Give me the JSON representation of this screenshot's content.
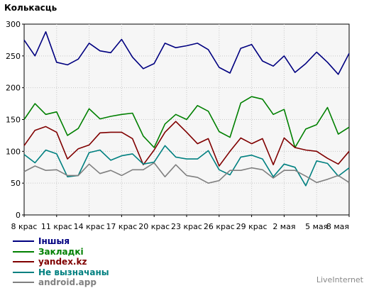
{
  "chart_data": {
    "type": "line",
    "title": "Колькасць",
    "xlabel": "",
    "ylabel": "",
    "ylim": [
      0,
      300
    ],
    "yticks": [
      0,
      50,
      100,
      150,
      200,
      250,
      300
    ],
    "grid": true,
    "legend_position": "bottom-left",
    "x_tick_labels": [
      "8 крас",
      "11 крас",
      "14 крас",
      "17 крас",
      "20 крас",
      "23 крас",
      "26 крас",
      "29 крас",
      "2 мая",
      "5 мая",
      "8 мая"
    ],
    "series": [
      {
        "name": "Іншыя",
        "color": "#000080",
        "values": [
          275,
          250,
          288,
          240,
          236,
          245,
          270,
          258,
          255,
          276,
          248,
          230,
          238,
          270,
          263,
          266,
          270,
          260,
          232,
          223,
          262,
          268,
          242,
          234,
          250,
          224,
          238,
          256,
          240,
          221,
          254
        ]
      },
      {
        "name": "Закладкі",
        "color": "#008000",
        "values": [
          150,
          175,
          158,
          162,
          125,
          136,
          167,
          151,
          155,
          158,
          160,
          124,
          106,
          143,
          158,
          150,
          172,
          163,
          131,
          122,
          176,
          186,
          182,
          158,
          166,
          106,
          135,
          142,
          169,
          127,
          138
        ]
      },
      {
        "name": "yandex.kz",
        "color": "#800000",
        "values": [
          109,
          133,
          139,
          130,
          88,
          104,
          110,
          129,
          130,
          130,
          120,
          79,
          102,
          130,
          147,
          130,
          112,
          120,
          77,
          100,
          121,
          112,
          120,
          79,
          121,
          106,
          102,
          100,
          89,
          80,
          100
        ]
      },
      {
        "name": "Не вызначаны",
        "color": "#008080",
        "values": [
          95,
          82,
          102,
          96,
          60,
          62,
          98,
          102,
          86,
          93,
          96,
          80,
          83,
          109,
          91,
          88,
          88,
          101,
          71,
          63,
          91,
          94,
          88,
          60,
          80,
          75,
          46,
          85,
          81,
          61,
          74
        ]
      },
      {
        "name": "android.app",
        "color": "#808080",
        "values": [
          68,
          77,
          70,
          71,
          62,
          62,
          80,
          65,
          70,
          62,
          71,
          71,
          82,
          60,
          79,
          62,
          59,
          50,
          54,
          70,
          70,
          74,
          71,
          58,
          70,
          70,
          61,
          51,
          56,
          62,
          51
        ]
      }
    ]
  },
  "brand": "LiveInternet"
}
